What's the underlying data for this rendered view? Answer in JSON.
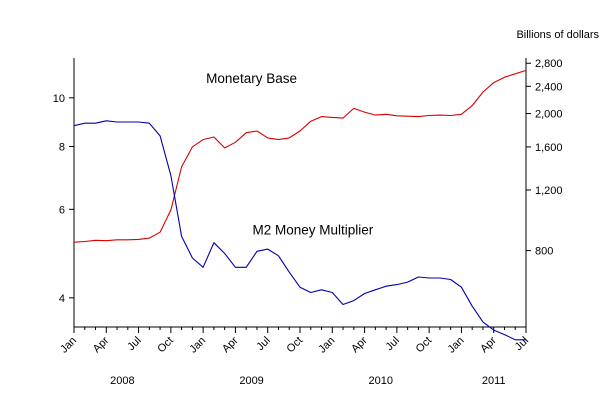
{
  "chart_data": {
    "type": "line",
    "right_axis_unit": "Billions of dollars",
    "x_tick_labels": [
      "Jan",
      "Apr",
      "Jul",
      "Oct",
      "Jan",
      "Apr",
      "Jul",
      "Oct",
      "Jan",
      "Apr",
      "Jul",
      "Oct",
      "Jan",
      "Apr",
      "Jul"
    ],
    "years": [
      {
        "label": "2008",
        "center_month": 4.5
      },
      {
        "label": "2009",
        "center_month": 16.5
      },
      {
        "label": "2010",
        "center_month": 28.5
      },
      {
        "label": "2011",
        "center_month": 39
      }
    ],
    "x_range_months": [
      0,
      42
    ],
    "left_axis": {
      "scale": "log",
      "ticks": [
        4,
        6,
        8,
        10
      ],
      "range": [
        3.5,
        12
      ]
    },
    "right_axis": {
      "scale": "log",
      "ticks": [
        800,
        1200,
        1600,
        2000,
        2400,
        2800
      ],
      "tick_labels": [
        "800",
        "1,200",
        "1,600",
        "2,000",
        "2,400",
        "2,800"
      ],
      "range": [
        480,
        2900
      ]
    },
    "series": [
      {
        "name": "Monetary Base",
        "axis": "right",
        "color": "#d90000",
        "label_anchor": {
          "month": 16.5,
          "value": 2450
        },
        "values": [
          846,
          850,
          857,
          855,
          860,
          860,
          862,
          870,
          905,
          1050,
          1400,
          1600,
          1680,
          1710,
          1590,
          1650,
          1760,
          1780,
          1700,
          1680,
          1700,
          1780,
          1900,
          1960,
          1950,
          1940,
          2070,
          2020,
          1980,
          1990,
          1970,
          1965,
          1960,
          1975,
          1980,
          1975,
          1990,
          2110,
          2310,
          2460,
          2550,
          2610,
          2670
        ]
      },
      {
        "name": "M2 Money Multiplier",
        "axis": "left",
        "color": "#0000b0",
        "label_anchor": {
          "month": 22.2,
          "value": 5.35
        },
        "values": [
          8.8,
          8.9,
          8.9,
          9.0,
          8.95,
          8.95,
          8.95,
          8.9,
          8.4,
          7.0,
          5.3,
          4.8,
          4.6,
          5.15,
          4.9,
          4.6,
          4.6,
          4.95,
          5.0,
          4.85,
          4.5,
          4.2,
          4.1,
          4.15,
          4.1,
          3.88,
          3.95,
          4.08,
          4.15,
          4.22,
          4.25,
          4.3,
          4.4,
          4.38,
          4.38,
          4.35,
          4.2,
          3.85,
          3.58,
          3.45,
          3.38,
          3.3,
          3.3
        ]
      }
    ]
  }
}
